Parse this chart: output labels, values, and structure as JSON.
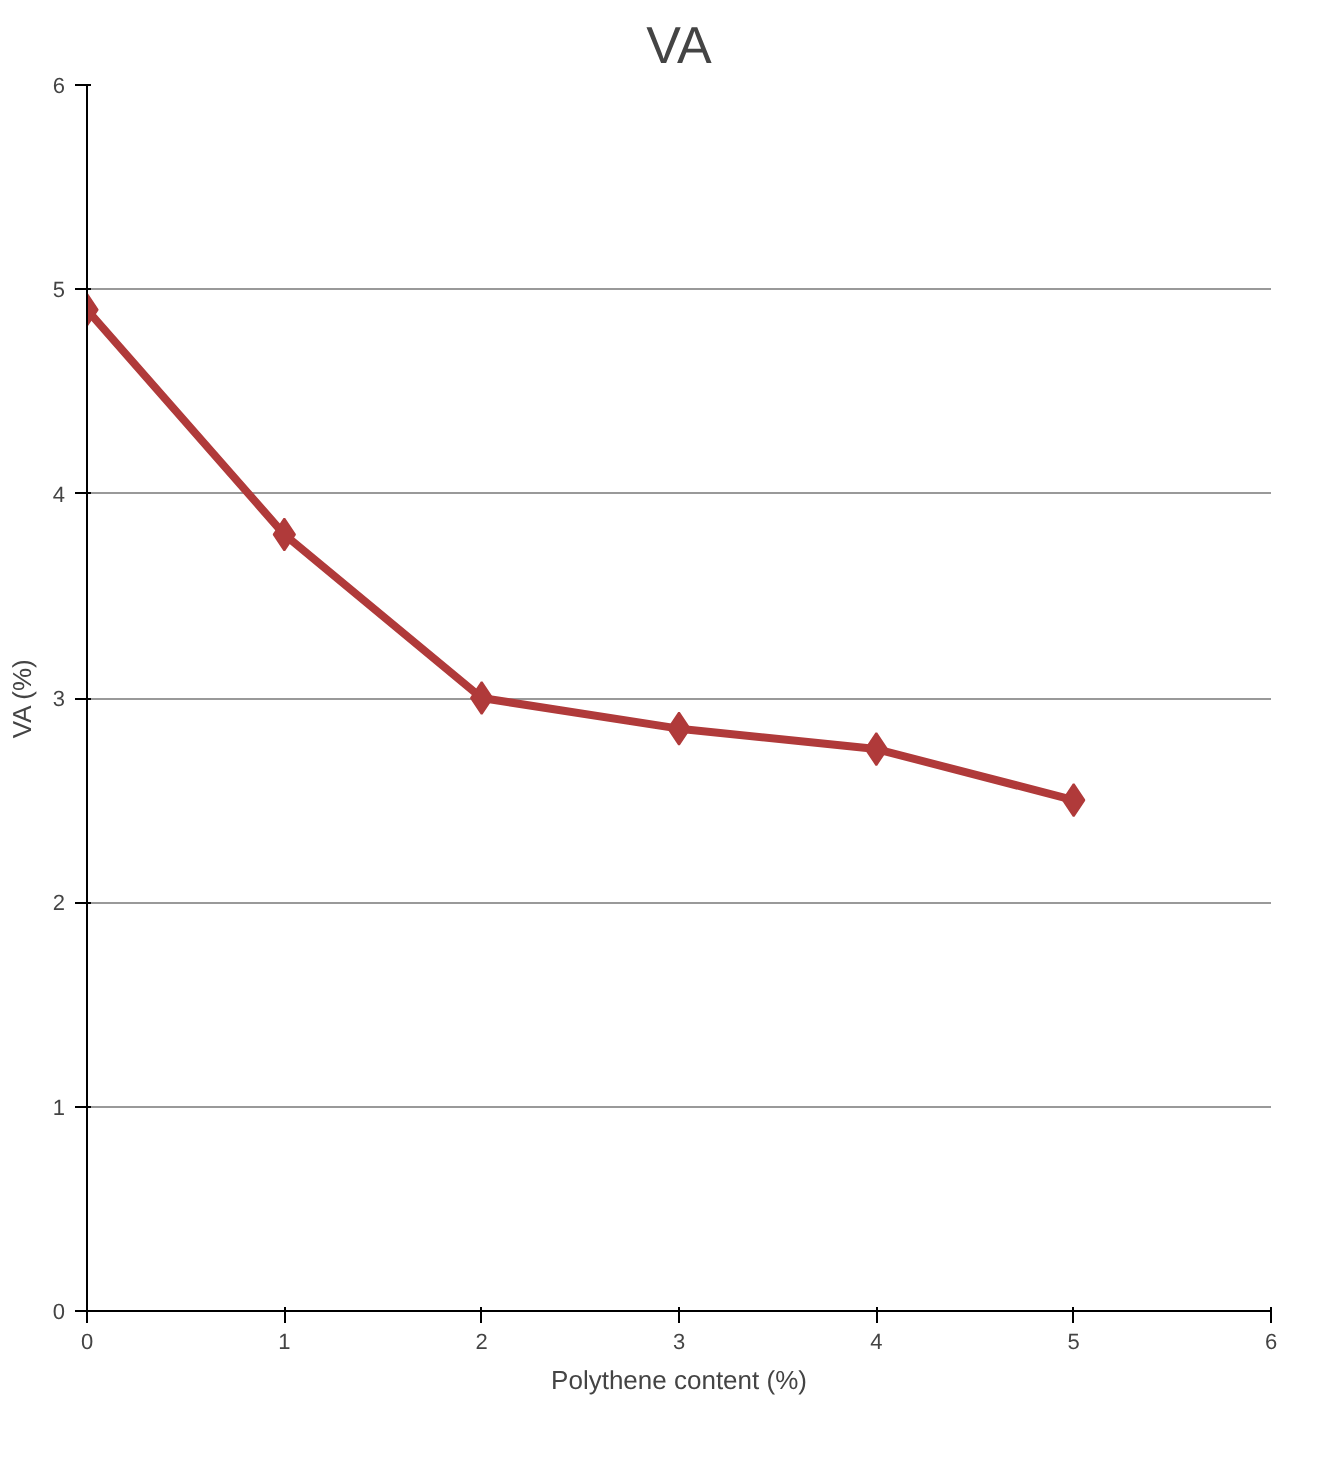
{
  "chart_data": {
    "type": "line",
    "title": "VA",
    "xlabel": "Polythene content (%)",
    "ylabel": "VA (%)",
    "x": [
      0,
      1,
      2,
      3,
      4,
      5
    ],
    "series": [
      {
        "color": "#b03a3a",
        "values": [
          4.9,
          3.8,
          3.0,
          2.85,
          2.75,
          2.5
        ]
      }
    ],
    "xlim": [
      0,
      6
    ],
    "xticks": [
      0,
      1,
      2,
      3,
      4,
      5,
      6
    ],
    "ylim": [
      0,
      6
    ],
    "yticks": [
      0,
      1,
      2,
      3,
      4,
      5,
      6
    ],
    "grid": "y",
    "marker": "diamond",
    "line_style": "solid"
  }
}
